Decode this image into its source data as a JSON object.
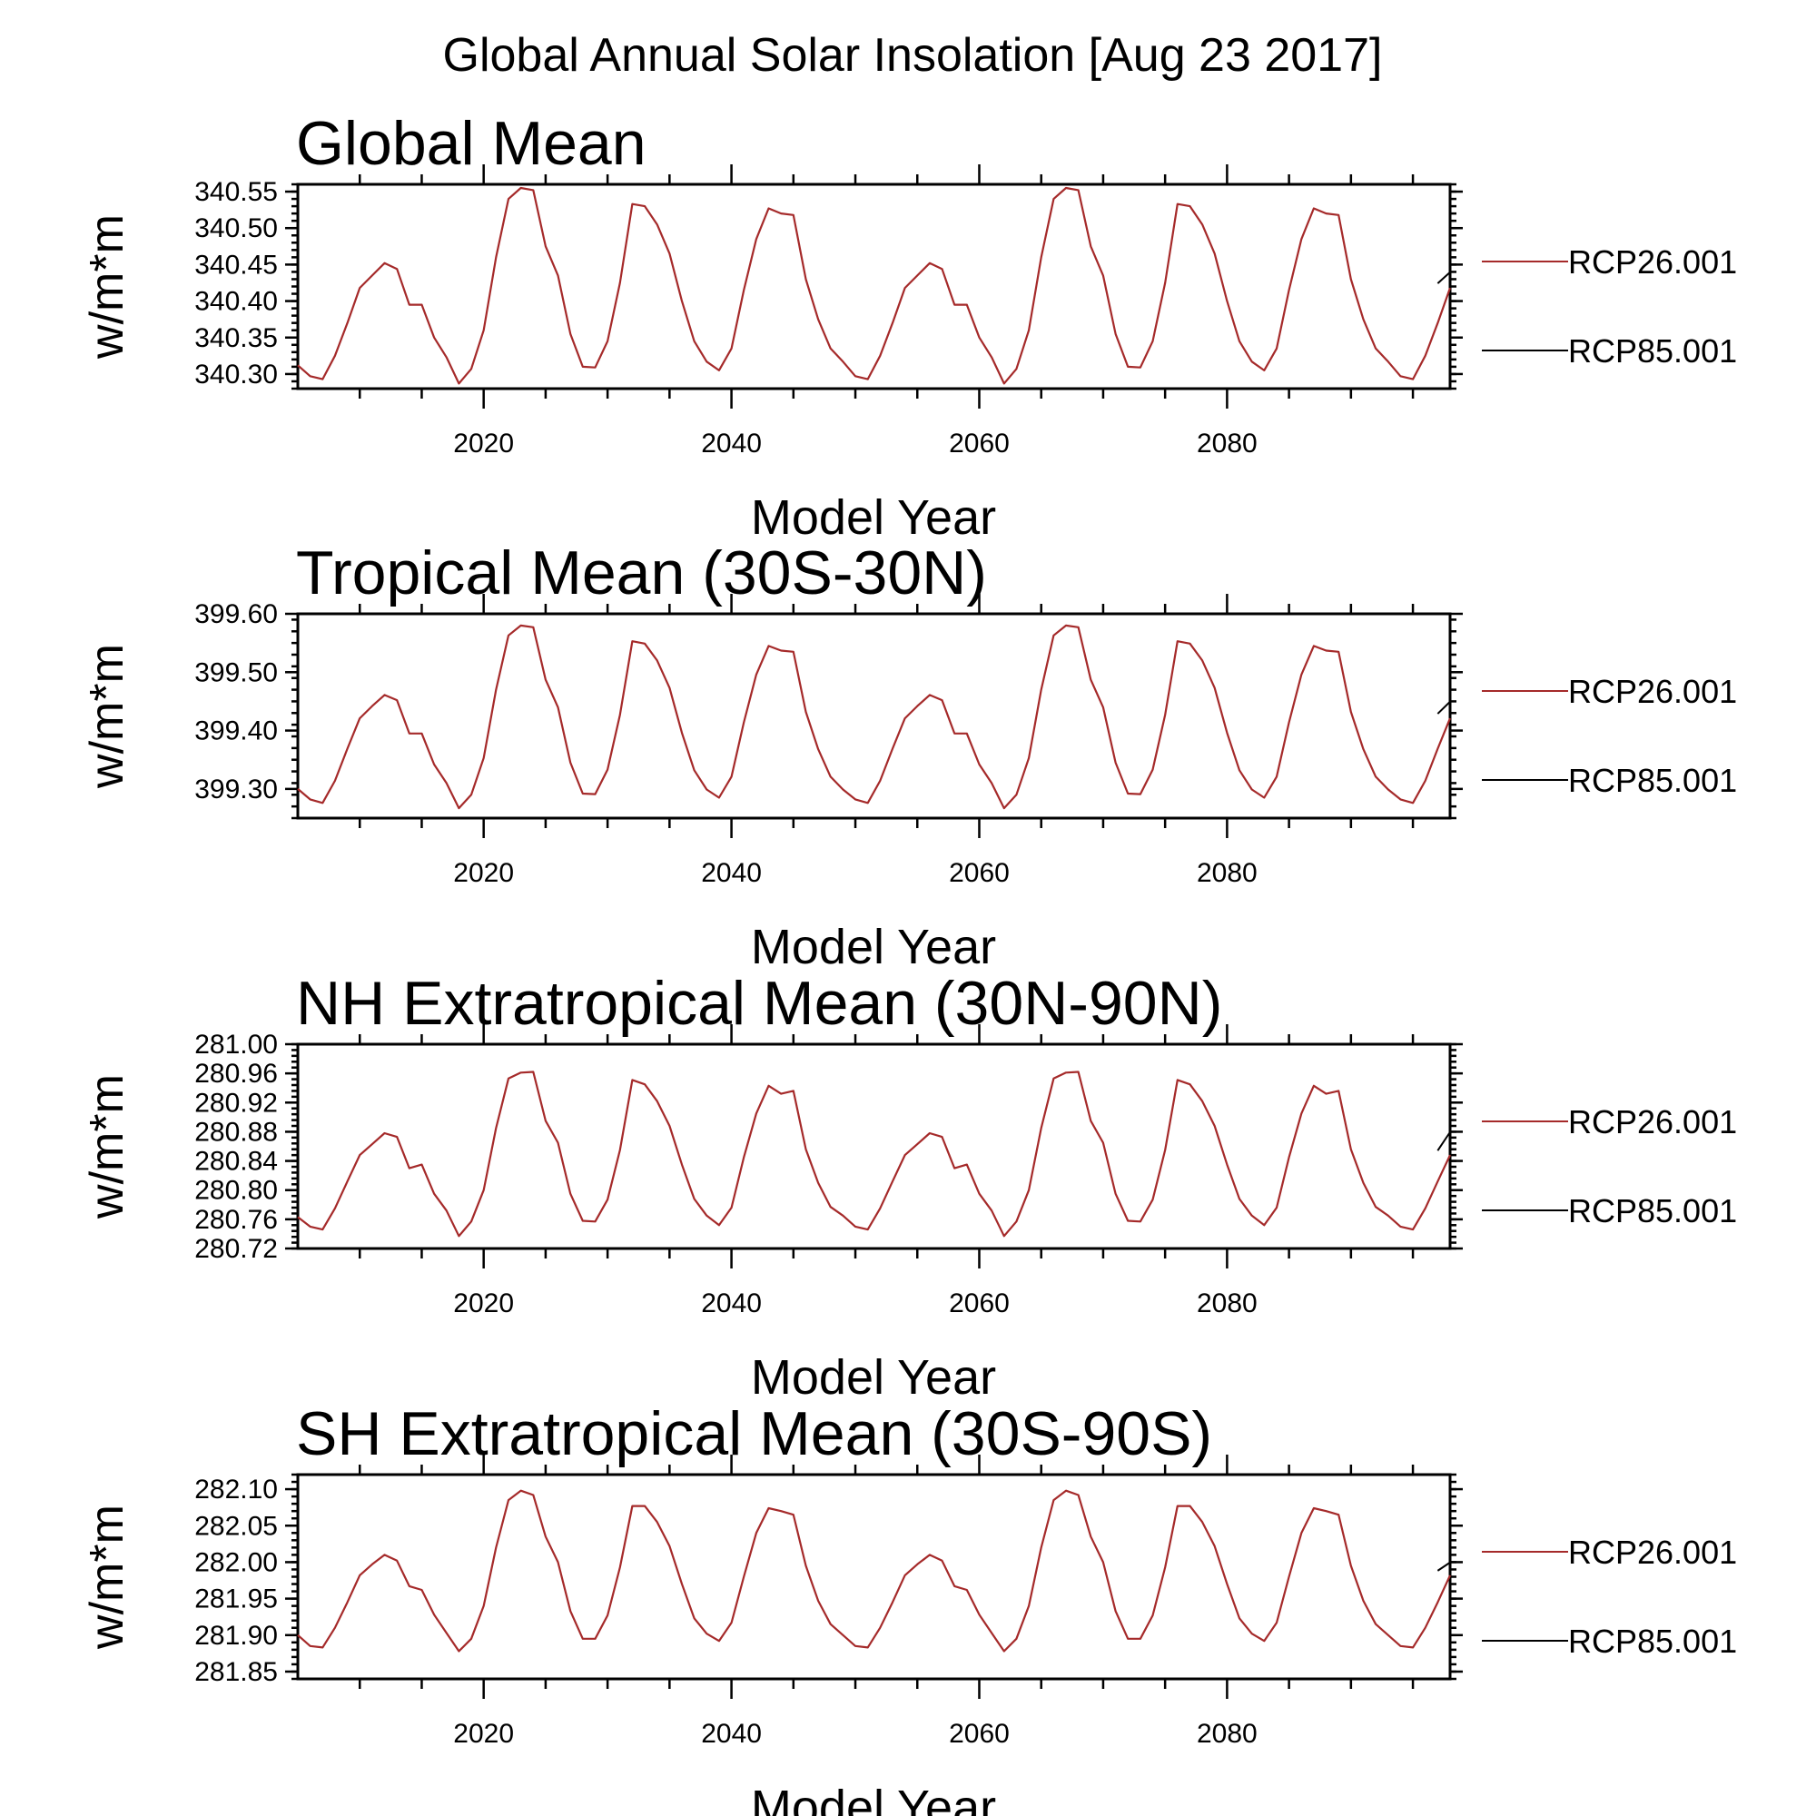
{
  "title": "Global Annual Solar Insolation [Aug 23 2017]",
  "chart_data": [
    {
      "type": "line",
      "title": "Global Mean",
      "xlabel": "Model Year",
      "ylabel": "w/m*m",
      "xlim": [
        2005,
        2098
      ],
      "ylim": [
        340.28,
        340.56
      ],
      "yticks": [
        "340.30",
        "340.35",
        "340.40",
        "340.45",
        "340.50",
        "340.55"
      ],
      "xticks": [
        "2020",
        "2040",
        "2060",
        "2080"
      ],
      "series": [
        {
          "name": "RCP26.001",
          "color": "#a52a2a",
          "x": [
            2005,
            2006,
            2007,
            2008,
            2009,
            2010,
            2011,
            2012,
            2013,
            2014,
            2015,
            2016,
            2017,
            2018,
            2019,
            2020,
            2021,
            2022,
            2023,
            2024,
            2025,
            2026,
            2027,
            2028,
            2029,
            2030,
            2031,
            2032,
            2033,
            2034,
            2035,
            2036,
            2037,
            2038,
            2039,
            2040,
            2041,
            2042,
            2043,
            2044,
            2045,
            2046,
            2047,
            2048,
            2049,
            2050,
            2051,
            2052,
            2053,
            2054,
            2055,
            2056,
            2057,
            2058,
            2059,
            2060,
            2061,
            2062,
            2063,
            2064,
            2065,
            2066,
            2067,
            2068,
            2069,
            2070,
            2071,
            2072,
            2073,
            2074,
            2075,
            2076,
            2077,
            2078,
            2079,
            2080,
            2081,
            2082,
            2083,
            2084,
            2085,
            2086,
            2087,
            2088,
            2089,
            2090,
            2091,
            2092,
            2093,
            2094,
            2095,
            2096,
            2097,
            2098
          ],
          "values": [
            340.312,
            340.297,
            340.293,
            340.325,
            340.37,
            340.418,
            340.435,
            340.452,
            340.444,
            340.395,
            340.395,
            340.35,
            340.323,
            340.287,
            340.307,
            340.36,
            340.46,
            340.54,
            340.555,
            340.552,
            340.475,
            340.435,
            340.355,
            340.31,
            340.309,
            340.345,
            340.425,
            340.533,
            340.53,
            340.505,
            340.465,
            340.4,
            340.345,
            340.317,
            340.305,
            340.335,
            340.415,
            340.485,
            340.527,
            340.52,
            340.518,
            340.43,
            340.375,
            340.335,
            340.317,
            340.297,
            340.293,
            340.325,
            340.37,
            340.418,
            340.435,
            340.452,
            340.444,
            340.395,
            340.395,
            340.35,
            340.323,
            340.287,
            340.307,
            340.36,
            340.46,
            340.54,
            340.555,
            340.552,
            340.475,
            340.435,
            340.355,
            340.31,
            340.309,
            340.345,
            340.425,
            340.533,
            340.53,
            340.505,
            340.465,
            340.4,
            340.345,
            340.317,
            340.305,
            340.335,
            340.415,
            340.485,
            340.527,
            340.52,
            340.518,
            340.43,
            340.375,
            340.335,
            340.317,
            340.297,
            340.293,
            340.325,
            340.37,
            340.418
          ]
        },
        {
          "name": "RCP85.001",
          "color": "#000000"
        }
      ]
    },
    {
      "type": "line",
      "title": "Tropical Mean (30S-30N)",
      "xlabel": "Model Year",
      "ylabel": "w/m*m",
      "xlim": [
        2005,
        2098
      ],
      "ylim": [
        399.25,
        399.6
      ],
      "yticks": [
        "399.30",
        "399.40",
        "399.50",
        "399.60"
      ],
      "xticks": [
        "2020",
        "2040",
        "2060",
        "2080"
      ],
      "series": [
        {
          "name": "RCP26.001",
          "color": "#a52a2a",
          "x": [
            2005,
            2006,
            2007,
            2008,
            2009,
            2010,
            2011,
            2012,
            2013,
            2014,
            2015,
            2016,
            2017,
            2018,
            2019,
            2020,
            2021,
            2022,
            2023,
            2024,
            2025,
            2026,
            2027,
            2028,
            2029,
            2030,
            2031,
            2032,
            2033,
            2034,
            2035,
            2036,
            2037,
            2038,
            2039,
            2040,
            2041,
            2042,
            2043,
            2044,
            2045,
            2046,
            2047,
            2048,
            2049,
            2050,
            2051,
            2052,
            2053,
            2054,
            2055,
            2056,
            2057,
            2058,
            2059,
            2060,
            2061,
            2062,
            2063,
            2064,
            2065,
            2066,
            2067,
            2068,
            2069,
            2070,
            2071,
            2072,
            2073,
            2074,
            2075,
            2076,
            2077,
            2078,
            2079,
            2080,
            2081,
            2082,
            2083,
            2084,
            2085,
            2086,
            2087,
            2088,
            2089,
            2090,
            2091,
            2092,
            2093,
            2094,
            2095,
            2096,
            2097,
            2098
          ],
          "values": [
            399.3,
            399.282,
            399.276,
            399.314,
            399.369,
            399.421,
            399.442,
            399.461,
            399.452,
            399.395,
            399.395,
            399.342,
            399.31,
            399.267,
            399.29,
            399.353,
            399.47,
            399.563,
            399.58,
            399.577,
            399.487,
            399.44,
            399.345,
            399.292,
            399.291,
            399.333,
            399.427,
            399.553,
            399.549,
            399.52,
            399.473,
            399.396,
            399.332,
            399.299,
            399.285,
            399.321,
            399.414,
            399.496,
            399.545,
            399.537,
            399.535,
            399.432,
            399.368,
            399.321,
            399.299,
            399.282,
            399.276,
            399.314,
            399.369,
            399.421,
            399.442,
            399.461,
            399.452,
            399.395,
            399.395,
            399.342,
            399.31,
            399.267,
            399.29,
            399.353,
            399.47,
            399.563,
            399.58,
            399.577,
            399.487,
            399.44,
            399.345,
            399.292,
            399.291,
            399.333,
            399.427,
            399.553,
            399.549,
            399.52,
            399.473,
            399.396,
            399.332,
            399.299,
            399.285,
            399.321,
            399.414,
            399.496,
            399.545,
            399.537,
            399.535,
            399.432,
            399.368,
            399.321,
            399.299,
            399.282,
            399.276,
            399.314,
            399.369,
            399.421
          ]
        },
        {
          "name": "RCP85.001",
          "color": "#000000"
        }
      ]
    },
    {
      "type": "line",
      "title": "NH Extratropical Mean (30N-90N)",
      "xlabel": "Model Year",
      "ylabel": "w/m*m",
      "xlim": [
        2005,
        2098
      ],
      "ylim": [
        280.72,
        281.0
      ],
      "yticks": [
        "280.72",
        "280.76",
        "280.80",
        "280.84",
        "280.88",
        "280.92",
        "280.96",
        "281.00"
      ],
      "xticks": [
        "2020",
        "2040",
        "2060",
        "2080"
      ],
      "series": [
        {
          "name": "RCP26.001",
          "color": "#a52a2a",
          "x": [
            2005,
            2006,
            2007,
            2008,
            2009,
            2010,
            2011,
            2012,
            2013,
            2014,
            2015,
            2016,
            2017,
            2018,
            2019,
            2020,
            2021,
            2022,
            2023,
            2024,
            2025,
            2026,
            2027,
            2028,
            2029,
            2030,
            2031,
            2032,
            2033,
            2034,
            2035,
            2036,
            2037,
            2038,
            2039,
            2040,
            2041,
            2042,
            2043,
            2044,
            2045,
            2046,
            2047,
            2048,
            2049,
            2050,
            2051,
            2052,
            2053,
            2054,
            2055,
            2056,
            2057,
            2058,
            2059,
            2060,
            2061,
            2062,
            2063,
            2064,
            2065,
            2066,
            2067,
            2068,
            2069,
            2070,
            2071,
            2072,
            2073,
            2074,
            2075,
            2076,
            2077,
            2078,
            2079,
            2080,
            2081,
            2082,
            2083,
            2084,
            2085,
            2086,
            2087,
            2088,
            2089,
            2090,
            2091,
            2092,
            2093,
            2094,
            2095,
            2096,
            2097,
            2098
          ],
          "values": [
            280.763,
            280.75,
            280.746,
            280.775,
            280.812,
            280.848,
            280.863,
            280.878,
            280.873,
            280.83,
            280.835,
            280.795,
            280.772,
            280.737,
            280.757,
            280.8,
            280.885,
            280.953,
            280.961,
            280.962,
            280.895,
            280.865,
            280.795,
            280.758,
            280.757,
            280.787,
            280.855,
            280.951,
            280.945,
            280.922,
            280.888,
            280.835,
            280.788,
            280.765,
            280.752,
            280.776,
            280.845,
            280.905,
            280.943,
            280.932,
            280.936,
            280.856,
            280.81,
            280.777,
            280.765,
            280.75,
            280.746,
            280.775,
            280.812,
            280.848,
            280.863,
            280.878,
            280.873,
            280.83,
            280.835,
            280.795,
            280.772,
            280.737,
            280.757,
            280.8,
            280.885,
            280.953,
            280.961,
            280.962,
            280.895,
            280.865,
            280.795,
            280.758,
            280.757,
            280.787,
            280.855,
            280.951,
            280.945,
            280.922,
            280.888,
            280.835,
            280.788,
            280.765,
            280.752,
            280.776,
            280.845,
            280.905,
            280.943,
            280.932,
            280.936,
            280.856,
            280.81,
            280.777,
            280.765,
            280.75,
            280.746,
            280.775,
            280.812,
            280.848
          ]
        },
        {
          "name": "RCP85.001",
          "color": "#000000"
        }
      ]
    },
    {
      "type": "line",
      "title": "SH Extratropical Mean (30S-90S)",
      "xlabel": "Model Year",
      "ylabel": "w/m*m",
      "xlim": [
        2005,
        2098
      ],
      "ylim": [
        281.84,
        282.12
      ],
      "yticks": [
        "281.85",
        "281.90",
        "281.95",
        "282.00",
        "282.05",
        "282.10"
      ],
      "xticks": [
        "2020",
        "2040",
        "2060",
        "2080"
      ],
      "series": [
        {
          "name": "RCP26.001",
          "color": "#a52a2a",
          "x": [
            2005,
            2006,
            2007,
            2008,
            2009,
            2010,
            2011,
            2012,
            2013,
            2014,
            2015,
            2016,
            2017,
            2018,
            2019,
            2020,
            2021,
            2022,
            2023,
            2024,
            2025,
            2026,
            2027,
            2028,
            2029,
            2030,
            2031,
            2032,
            2033,
            2034,
            2035,
            2036,
            2037,
            2038,
            2039,
            2040,
            2041,
            2042,
            2043,
            2044,
            2045,
            2046,
            2047,
            2048,
            2049,
            2050,
            2051,
            2052,
            2053,
            2054,
            2055,
            2056,
            2057,
            2058,
            2059,
            2060,
            2061,
            2062,
            2063,
            2064,
            2065,
            2066,
            2067,
            2068,
            2069,
            2070,
            2071,
            2072,
            2073,
            2074,
            2075,
            2076,
            2077,
            2078,
            2079,
            2080,
            2081,
            2082,
            2083,
            2084,
            2085,
            2086,
            2087,
            2088,
            2089,
            2090,
            2091,
            2092,
            2093,
            2094,
            2095,
            2096,
            2097,
            2098
          ],
          "values": [
            281.9,
            281.885,
            281.883,
            281.91,
            281.945,
            281.982,
            281.997,
            282.01,
            282.002,
            281.967,
            281.962,
            281.928,
            281.903,
            281.878,
            281.895,
            281.94,
            282.02,
            282.085,
            282.098,
            282.092,
            282.035,
            282.0,
            281.933,
            281.895,
            281.895,
            281.927,
            281.993,
            282.077,
            282.077,
            282.055,
            282.022,
            281.97,
            281.923,
            281.902,
            281.892,
            281.917,
            281.98,
            282.04,
            282.074,
            282.07,
            282.065,
            281.995,
            281.947,
            281.915,
            281.9,
            281.885,
            281.883,
            281.91,
            281.945,
            281.982,
            281.997,
            282.01,
            282.002,
            281.967,
            281.962,
            281.928,
            281.903,
            281.878,
            281.895,
            281.94,
            282.02,
            282.085,
            282.098,
            282.092,
            282.035,
            282.0,
            281.933,
            281.895,
            281.895,
            281.927,
            281.993,
            282.077,
            282.077,
            282.055,
            282.022,
            281.97,
            281.923,
            281.902,
            281.892,
            281.917,
            281.98,
            282.04,
            282.074,
            282.07,
            282.065,
            281.995,
            281.947,
            281.915,
            281.9,
            281.885,
            281.883,
            281.91,
            281.945,
            281.982
          ]
        },
        {
          "name": "RCP85.001",
          "color": "#000000"
        }
      ]
    }
  ]
}
